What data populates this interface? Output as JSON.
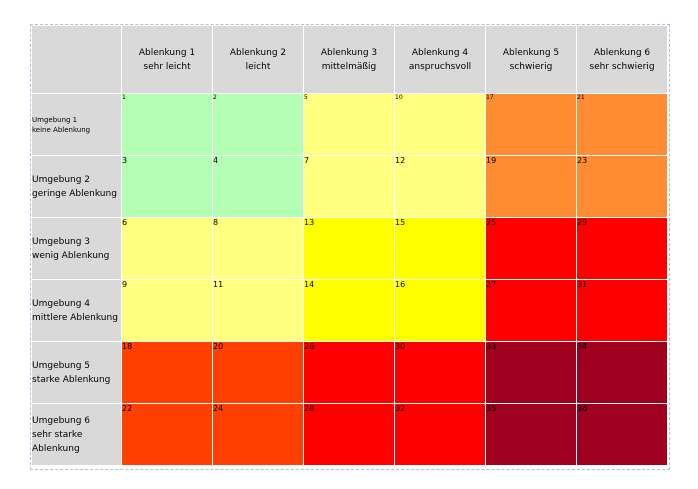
{
  "colors": {
    "header_gray": "#d9d9d9",
    "green": "#b3ffb3",
    "light_yellow": "#ffff80",
    "yellow": "#ffff00",
    "orange": "#ff8c33",
    "red_orange": "#ff4000",
    "red": "#ff0000",
    "dark_red": "#a00020"
  },
  "columns": [
    {
      "line1": "Ablenkung 1",
      "line2": "sehr leicht"
    },
    {
      "line1": "Ablenkung 2",
      "line2": "leicht"
    },
    {
      "line1": "Ablenkung 3",
      "line2": "mittelmäßig"
    },
    {
      "line1": "Ablenkung 4",
      "line2": "anspruchsvoll"
    },
    {
      "line1": "Ablenkung 5",
      "line2": "schwierig"
    },
    {
      "line1": "Ablenkung 6",
      "line2": "sehr schwierig"
    }
  ],
  "rows": [
    {
      "line1": "Umgebung 1",
      "line2": "keine Ablenkung",
      "line3": "",
      "cells": [
        "1",
        "2",
        "5",
        "10",
        "17",
        "21"
      ],
      "colors": [
        "green",
        "green",
        "light_yellow",
        "light_yellow",
        "orange",
        "orange"
      ]
    },
    {
      "line1": "Umgebung 2",
      "line2": "geringe Ablenkung",
      "line3": "",
      "cells": [
        "3",
        "4",
        "7",
        "12",
        "19",
        "23"
      ],
      "colors": [
        "green",
        "green",
        "light_yellow",
        "light_yellow",
        "orange",
        "orange"
      ]
    },
    {
      "line1": "Umgebung 3",
      "line2": "wenig Ablenkung",
      "line3": "",
      "cells": [
        "6",
        "8",
        "13",
        "15",
        "25",
        "29"
      ],
      "colors": [
        "light_yellow",
        "light_yellow",
        "yellow",
        "yellow",
        "red",
        "red"
      ]
    },
    {
      "line1": "Umgebung 4",
      "line2": "mittlere Ablenkung",
      "line3": "",
      "cells": [
        "9",
        "11",
        "14",
        "16",
        "27",
        "31"
      ],
      "colors": [
        "light_yellow",
        "light_yellow",
        "yellow",
        "yellow",
        "red",
        "red"
      ]
    },
    {
      "line1": "Umgebung 5",
      "line2": "starke Ablenkung",
      "line3": "",
      "cells": [
        "18",
        "20",
        "26",
        "30",
        "33",
        "34"
      ],
      "colors": [
        "red_orange",
        "red_orange",
        "red",
        "red",
        "dark_red",
        "dark_red"
      ]
    },
    {
      "line1": "Umgebung 6",
      "line2": "sehr starke",
      "line3": "Ablenkung",
      "cells": [
        "22",
        "24",
        "28",
        "32",
        "35",
        "36"
      ],
      "colors": [
        "red_orange",
        "red_orange",
        "red",
        "red",
        "dark_red",
        "dark_red"
      ]
    }
  ]
}
